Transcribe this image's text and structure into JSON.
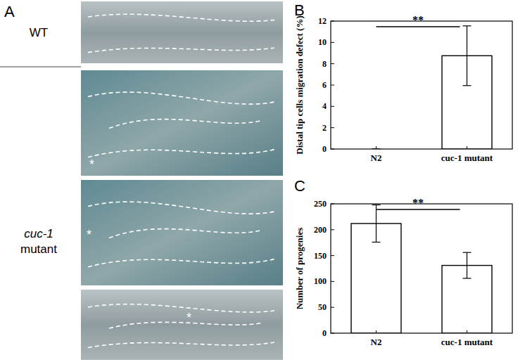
{
  "chart_data": [
    {
      "type": "bar",
      "panel": "B",
      "y_label": "Distal tip cells migration defect (%)",
      "categories": [
        "N2",
        "cuc-1 mutant"
      ],
      "values": [
        0,
        8.75
      ],
      "errors": [
        0,
        2.8
      ],
      "color": "#ffffff",
      "ylim": [
        0,
        12
      ],
      "yticks": [
        0,
        2,
        4,
        6,
        8,
        10,
        12
      ],
      "grid": false,
      "annotations": [
        {
          "text": "**"
        }
      ]
    },
    {
      "type": "bar",
      "panel": "C",
      "y_label": "Number of progenies",
      "categories": [
        "N2",
        "cuc-1 mutant"
      ],
      "values": [
        212,
        131
      ],
      "errors": [
        36,
        25
      ],
      "color": "#ffffff",
      "ylim": [
        0,
        250
      ],
      "yticks": [
        0,
        50,
        100,
        150,
        200,
        250
      ],
      "grid": false,
      "annotations": [
        {
          "text": "**"
        }
      ]
    }
  ],
  "panel_a": {
    "letter": "A",
    "wt_label": "WT",
    "mutant_label": [
      "cuc-1",
      "mutant"
    ],
    "markers": [
      "*",
      "*",
      "*"
    ]
  }
}
